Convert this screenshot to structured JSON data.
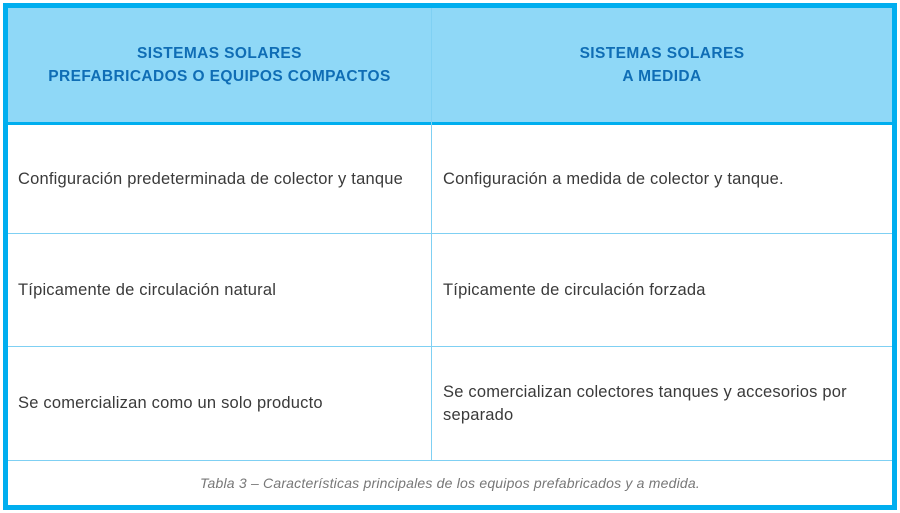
{
  "header": {
    "col1": "SISTEMAS SOLARES\nPREFABRICADOS O EQUIPOS COMPACTOS",
    "col2": "SISTEMAS SOLARES\nA MEDIDA"
  },
  "rows": [
    {
      "col1": "Configuración predeterminada de colector y tanque",
      "col2": "Configuración a medida de colector y tanque."
    },
    {
      "col1": "Típicamente de circulación natural",
      "col2": "Típicamente de circulación forzada"
    },
    {
      "col1": "Se comercializan como un solo producto",
      "col2": "Se comercializan colectores tanques y accesorios por separado"
    }
  ],
  "caption": "Tabla 3 – Características principales de los equipos prefabricados y a medida.",
  "colors": {
    "border": "#00aeef",
    "header_bg": "#8fd8f7",
    "header_text": "#0f6db5"
  }
}
